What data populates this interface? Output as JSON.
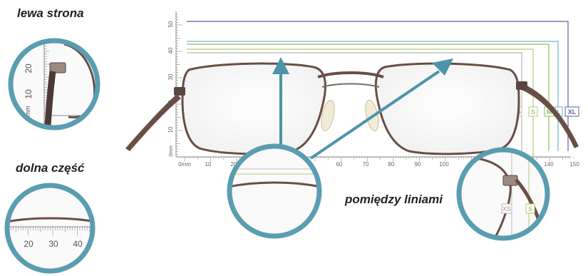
{
  "labels": {
    "left_side": "lewa strona",
    "bottom_part": "dolna część",
    "between_lines": "pomiędzy liniami"
  },
  "vertical_scale": {
    "unit": "mm",
    "ticks": [
      "50",
      "40",
      "30",
      "20",
      "10",
      "0mm"
    ]
  },
  "horizontal_scale": {
    "ticks": [
      "0mm",
      "10",
      "20",
      "60",
      "70",
      "80",
      "90",
      "100",
      "140",
      "150"
    ]
  },
  "sizes": [
    "XS",
    "S",
    "M",
    "L",
    "XL"
  ],
  "sizes_lower": [
    "XS",
    "S"
  ],
  "left_zoom_scale": {
    "ticks": [
      "20",
      "10"
    ],
    "unit": "mm"
  },
  "bottom_zoom_scale": {
    "ticks": [
      "20",
      "30",
      "40"
    ]
  },
  "colors": {
    "ring": "#5a9db0",
    "arrow": "#4f93ab",
    "xs": "#b9b9b9",
    "s": "#b8c77a",
    "m": "#8dbf5a",
    "l": "#6fb3c8",
    "xl": "#5a62a8",
    "frame": "#6a4e46"
  }
}
